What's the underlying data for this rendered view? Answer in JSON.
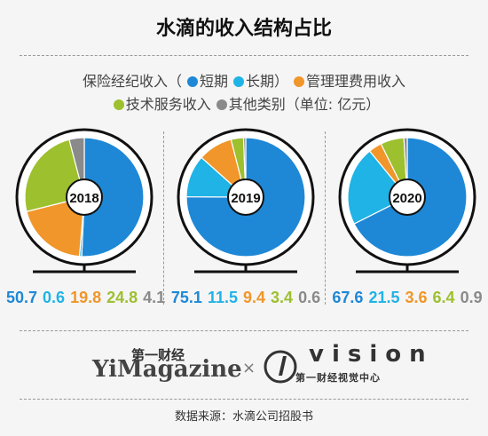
{
  "title": "水滴的收入结构占比",
  "legend": {
    "line1_prefix": "保险经纪收入（",
    "short_label": "短期",
    "long_label": "长期）",
    "mgmt_label": "管理理费用收入",
    "tech_label": "技术服务收入",
    "other_label": "其他类别（单位: 亿元）"
  },
  "colors": {
    "short": "#1e88d6",
    "long": "#1fb3e6",
    "mgmt": "#f0962a",
    "tech": "#9dc02e",
    "other": "#8a8a8a"
  },
  "chart_data": {
    "type": "pie",
    "title": "水滴的收入结构占比",
    "unit": "亿元",
    "categories": [
      "短期",
      "长期",
      "管理费用收入",
      "技术服务收入",
      "其他类别"
    ],
    "series": [
      {
        "name": "2018",
        "values": [
          50.7,
          0.6,
          19.8,
          24.8,
          4.1
        ]
      },
      {
        "name": "2019",
        "values": [
          75.1,
          11.5,
          9.4,
          3.4,
          0.6
        ]
      },
      {
        "name": "2020",
        "values": [
          67.6,
          21.5,
          3.6,
          6.4,
          0.9
        ]
      }
    ]
  },
  "brand": {
    "cn": "第一财经",
    "en": "YiMagazine",
    "x": "×",
    "vision_en": "vision",
    "vision_cn": "第一财经视觉中心"
  },
  "source": "数据来源：水滴公司招股书"
}
